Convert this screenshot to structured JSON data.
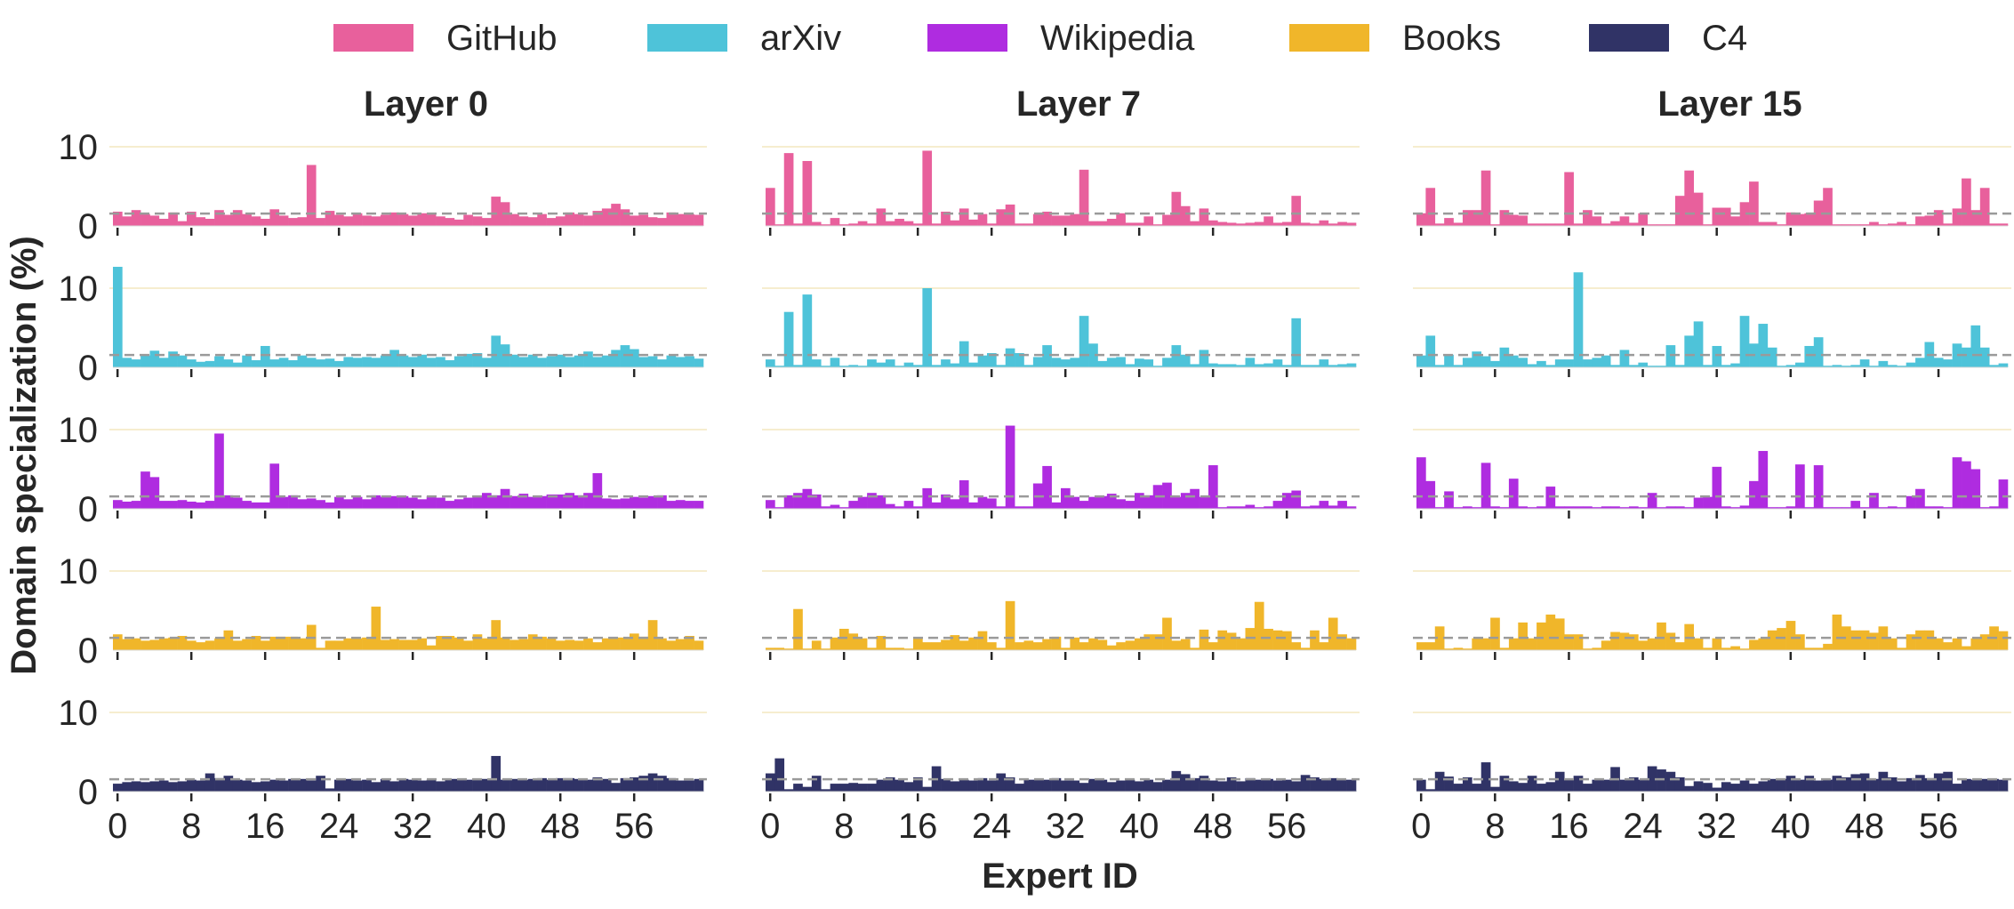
{
  "chart_data": {
    "type": "bar",
    "ylabel": "Domain specialization (%)",
    "xlabel": "Expert ID",
    "panel_titles": [
      "Layer 0",
      "Layer 7",
      "Layer 15"
    ],
    "ylim": [
      0,
      10
    ],
    "yticks": [
      0,
      10
    ],
    "xticks": [
      0,
      8,
      16,
      24,
      32,
      40,
      48,
      56
    ],
    "num_experts": 64,
    "reference_line": 1.5625,
    "legend_position": "top",
    "grid": true,
    "domains": [
      {
        "name": "GitHub",
        "color": "#E8609C",
        "layers": [
          [
            1.8,
            1.2,
            2.0,
            1.5,
            1.3,
            0.9,
            1.7,
            0.6,
            1.8,
            1.1,
            0.9,
            2.0,
            1.4,
            2.0,
            1.5,
            1.2,
            0.9,
            2.1,
            1.3,
            1.0,
            1.1,
            7.7,
            1.0,
            1.9,
            1.4,
            1.2,
            1.6,
            1.3,
            1.2,
            1.4,
            1.7,
            1.5,
            1.3,
            1.6,
            1.5,
            1.2,
            1.0,
            0.8,
            1.4,
            1.2,
            1.0,
            3.7,
            3.0,
            1.5,
            1.2,
            1.1,
            1.5,
            1.0,
            1.2,
            1.7,
            1.5,
            1.3,
            1.9,
            2.2,
            2.8,
            2.1,
            1.3,
            1.4,
            1.1,
            1.0,
            1.7,
            1.5,
            1.5,
            1.4
          ],
          [
            4.8,
            0.2,
            9.2,
            0.3,
            8.2,
            0.5,
            0.2,
            1.0,
            0.2,
            0.3,
            0.6,
            0.3,
            2.2,
            0.6,
            0.9,
            0.6,
            0.3,
            9.5,
            0.3,
            1.8,
            0.7,
            2.2,
            0.8,
            1.5,
            0.3,
            2.1,
            2.7,
            0.3,
            0.3,
            1.5,
            1.8,
            1.3,
            1.3,
            1.5,
            7.1,
            0.6,
            0.6,
            0.9,
            1.6,
            0.4,
            0.4,
            1.2,
            0.2,
            1.4,
            4.3,
            2.5,
            0.6,
            2.2,
            0.7,
            0.5,
            0.4,
            0.3,
            0.4,
            0.5,
            1.2,
            0.4,
            0.5,
            3.8,
            0.4,
            0.3,
            0.7,
            0.3,
            0.5,
            0.4
          ],
          [
            1.6,
            4.8,
            0.3,
            1.0,
            0.4,
            2.0,
            2.0,
            7.0,
            0.2,
            2.0,
            1.4,
            1.3,
            0.3,
            0.3,
            0.3,
            0.3,
            6.8,
            0.3,
            2.0,
            1.2,
            0.3,
            0.6,
            1.2,
            0.4,
            1.6,
            0.2,
            0.2,
            0.2,
            3.8,
            7.0,
            4.2,
            0.2,
            2.3,
            2.3,
            1.2,
            3.0,
            5.6,
            0.5,
            0.5,
            0.2,
            1.7,
            1.5,
            1.6,
            3.2,
            4.8,
            0.2,
            0.2,
            0.2,
            0.2,
            0.5,
            0.2,
            0.3,
            0.5,
            0.2,
            1.2,
            1.3,
            2.0,
            0.3,
            2.2,
            6.0,
            2.0,
            4.8,
            0.3,
            0.3
          ]
        ]
      },
      {
        "name": "arXiv",
        "color": "#4EC3D9",
        "layers": [
          [
            12.7,
            1.2,
            1.0,
            1.5,
            2.1,
            1.2,
            2.0,
            1.5,
            1.0,
            0.7,
            0.8,
            1.4,
            1.0,
            0.6,
            1.5,
            0.9,
            2.7,
            1.0,
            1.2,
            0.9,
            1.5,
            1.2,
            1.0,
            1.1,
            0.8,
            1.3,
            1.2,
            1.3,
            1.2,
            1.5,
            2.2,
            1.5,
            1.3,
            1.6,
            1.2,
            1.3,
            0.9,
            1.4,
            1.7,
            1.8,
            1.2,
            4.0,
            2.9,
            1.6,
            1.3,
            1.6,
            1.2,
            1.4,
            1.6,
            1.3,
            1.5,
            2.0,
            1.3,
            1.5,
            2.2,
            2.8,
            2.3,
            1.3,
            1.4,
            1.0,
            1.5,
            1.3,
            1.4,
            1.1
          ],
          [
            1.0,
            0.2,
            7.0,
            0.3,
            9.2,
            1.0,
            0.2,
            1.2,
            0.2,
            0.3,
            0.2,
            1.0,
            0.6,
            1.0,
            0.2,
            0.6,
            0.3,
            10.0,
            0.3,
            1.0,
            0.5,
            3.3,
            0.6,
            1.5,
            1.8,
            0.3,
            2.4,
            1.8,
            0.3,
            1.3,
            2.8,
            1.2,
            1.0,
            1.2,
            6.5,
            3.0,
            0.8,
            1.2,
            1.3,
            0.4,
            1.1,
            1.0,
            0.2,
            1.2,
            2.8,
            1.6,
            0.4,
            2.2,
            0.5,
            0.4,
            0.4,
            0.3,
            1.2,
            0.4,
            0.5,
            1.0,
            0.3,
            6.2,
            0.3,
            0.3,
            1.0,
            0.3,
            0.4,
            0.5
          ],
          [
            1.5,
            4.0,
            0.3,
            1.6,
            0.3,
            1.2,
            2.0,
            1.4,
            0.8,
            2.5,
            1.5,
            1.2,
            0.4,
            0.8,
            0.3,
            1.0,
            1.0,
            12.0,
            1.0,
            1.2,
            1.5,
            0.3,
            2.2,
            0.3,
            0.6,
            0.2,
            0.2,
            2.8,
            0.3,
            4.0,
            5.8,
            0.3,
            2.7,
            0.3,
            0.5,
            6.5,
            3.0,
            5.5,
            2.5,
            0.2,
            0.3,
            0.6,
            2.7,
            3.8,
            0.2,
            0.3,
            0.2,
            0.3,
            1.0,
            0.2,
            0.8,
            0.3,
            0.2,
            0.6,
            1.2,
            3.2,
            1.2,
            1.0,
            3.0,
            2.5,
            5.3,
            2.5,
            0.3,
            0.5
          ]
        ]
      },
      {
        "name": "Wikipedia",
        "color": "#AF2CE0",
        "layers": [
          [
            1.1,
            0.9,
            1.0,
            4.7,
            4.0,
            1.0,
            1.0,
            1.1,
            0.9,
            0.8,
            1.0,
            9.5,
            1.7,
            1.4,
            1.0,
            0.8,
            0.8,
            5.7,
            1.5,
            1.7,
            1.2,
            1.3,
            1.1,
            0.8,
            1.5,
            1.2,
            1.5,
            1.2,
            1.7,
            1.5,
            1.6,
            1.6,
            1.4,
            1.2,
            1.6,
            1.4,
            1.0,
            1.2,
            1.4,
            1.6,
            2.0,
            1.7,
            2.5,
            1.6,
            1.9,
            1.5,
            1.6,
            1.8,
            1.8,
            2.0,
            1.7,
            2.0,
            4.5,
            1.3,
            1.2,
            1.3,
            1.5,
            1.4,
            1.6,
            1.7,
            1.0,
            1.1,
            1.0,
            1.0
          ],
          [
            1.1,
            0.2,
            1.7,
            2.0,
            2.5,
            1.8,
            0.3,
            0.5,
            0.2,
            1.0,
            1.5,
            2.0,
            1.7,
            0.6,
            0.3,
            1.0,
            0.3,
            2.6,
            0.8,
            1.8,
            1.2,
            3.6,
            0.8,
            1.5,
            1.3,
            0.3,
            10.5,
            0.3,
            0.3,
            3.2,
            5.4,
            0.8,
            2.6,
            1.5,
            1.0,
            1.5,
            1.6,
            1.9,
            1.2,
            1.0,
            2.0,
            1.7,
            3.0,
            3.3,
            1.5,
            2.0,
            2.5,
            1.5,
            5.5,
            0.2,
            0.3,
            0.3,
            0.5,
            0.2,
            0.3,
            1.0,
            2.0,
            2.3,
            0.3,
            0.4,
            1.0,
            0.4,
            1.0,
            0.3
          ],
          [
            6.5,
            3.5,
            0.2,
            2.2,
            0.2,
            0.3,
            0.2,
            5.8,
            0.3,
            0.2,
            3.8,
            0.3,
            0.2,
            0.3,
            2.8,
            0.3,
            0.3,
            0.3,
            0.3,
            0.2,
            0.3,
            0.3,
            0.2,
            0.3,
            0.2,
            2.0,
            0.2,
            0.3,
            0.3,
            0.2,
            1.4,
            1.5,
            5.3,
            0.3,
            0.2,
            0.4,
            3.5,
            7.3,
            0.2,
            0.2,
            0.3,
            5.6,
            0.2,
            5.5,
            0.2,
            0.2,
            0.2,
            1.0,
            0.2,
            2.0,
            0.2,
            0.3,
            0.2,
            1.6,
            2.5,
            0.3,
            0.3,
            0.2,
            6.5,
            6.0,
            5.0,
            0.2,
            0.3,
            3.7
          ]
        ]
      },
      {
        "name": "Books",
        "color": "#F0B62A",
        "layers": [
          [
            2.0,
            1.4,
            1.5,
            1.2,
            1.3,
            1.5,
            1.6,
            1.8,
            1.2,
            1.0,
            1.2,
            1.5,
            2.5,
            1.2,
            1.4,
            1.8,
            1.2,
            1.7,
            1.7,
            1.7,
            1.5,
            3.2,
            0.3,
            1.2,
            1.2,
            1.5,
            1.5,
            1.6,
            5.5,
            1.3,
            1.4,
            1.3,
            1.3,
            1.5,
            0.6,
            1.8,
            1.8,
            1.6,
            1.2,
            2.0,
            1.5,
            3.8,
            1.6,
            1.3,
            1.4,
            2.0,
            1.7,
            1.5,
            1.2,
            1.3,
            1.2,
            1.5,
            1.0,
            1.5,
            1.6,
            1.6,
            2.1,
            1.7,
            3.8,
            1.5,
            1.2,
            1.4,
            1.8,
            1.2
          ],
          [
            0.3,
            0.3,
            0.2,
            5.2,
            0.2,
            1.2,
            0.2,
            1.6,
            2.7,
            2.1,
            1.5,
            0.3,
            1.8,
            0.3,
            0.3,
            0.2,
            1.5,
            1.0,
            1.0,
            1.3,
            1.9,
            1.2,
            1.6,
            2.4,
            1.0,
            0.3,
            6.2,
            1.0,
            1.2,
            1.0,
            1.4,
            1.7,
            0.3,
            1.6,
            1.0,
            1.5,
            1.3,
            0.6,
            1.0,
            1.2,
            1.5,
            2.0,
            2.0,
            4.1,
            1.2,
            1.4,
            0.3,
            2.6,
            1.0,
            2.5,
            2.2,
            1.5,
            2.8,
            6.1,
            2.7,
            2.5,
            2.4,
            1.0,
            0.3,
            2.5,
            1.0,
            4.1,
            2.0,
            1.5
          ],
          [
            1.0,
            1.0,
            3.0,
            0.2,
            0.3,
            0.2,
            1.5,
            1.5,
            4.1,
            0.3,
            1.5,
            3.5,
            1.5,
            3.5,
            4.5,
            4.0,
            2.0,
            2.0,
            0.2,
            0.3,
            1.2,
            2.3,
            2.2,
            2.0,
            1.2,
            1.5,
            3.5,
            2.2,
            1.0,
            3.3,
            1.5,
            0.3,
            1.5,
            0.3,
            0.5,
            0.2,
            1.3,
            1.5,
            2.5,
            2.8,
            3.7,
            2.0,
            0.3,
            0.3,
            0.8,
            4.5,
            3.0,
            2.5,
            2.5,
            2.2,
            3.0,
            1.5,
            0.3,
            2.0,
            2.5,
            2.5,
            1.5,
            1.0,
            1.5,
            0.5,
            1.5,
            2.0,
            3.0,
            2.4
          ]
        ]
      },
      {
        "name": "C4",
        "color": "#303366",
        "layers": [
          [
            1.0,
            1.2,
            1.3,
            1.2,
            1.3,
            1.4,
            1.2,
            1.3,
            1.5,
            1.4,
            2.3,
            1.7,
            2.0,
            1.5,
            1.4,
            1.2,
            1.3,
            1.5,
            1.4,
            1.6,
            1.6,
            1.4,
            2.0,
            0.4,
            1.5,
            1.6,
            1.4,
            1.5,
            1.2,
            1.6,
            1.3,
            1.6,
            1.5,
            1.4,
            1.5,
            1.3,
            1.6,
            1.6,
            1.5,
            1.6,
            1.6,
            4.5,
            1.5,
            1.6,
            1.5,
            1.6,
            1.7,
            1.5,
            1.7,
            1.7,
            1.6,
            1.5,
            1.8,
            1.6,
            1.1,
            1.7,
            1.8,
            2.0,
            2.3,
            2.0,
            1.7,
            1.4,
            1.4,
            1.6
          ],
          [
            2.3,
            4.2,
            0.3,
            1.0,
            0.6,
            2.0,
            0.3,
            1.0,
            1.0,
            1.1,
            1.0,
            1.0,
            1.5,
            1.8,
            1.5,
            1.2,
            1.8,
            0.6,
            3.2,
            1.6,
            1.3,
            1.5,
            1.4,
            1.7,
            1.4,
            2.3,
            1.8,
            1.0,
            1.5,
            1.5,
            1.5,
            1.7,
            1.4,
            1.4,
            1.1,
            1.6,
            1.5,
            1.2,
            1.4,
            1.5,
            1.3,
            1.5,
            1.2,
            1.5,
            2.6,
            2.2,
            1.7,
            2.0,
            1.4,
            1.3,
            1.8,
            1.3,
            1.7,
            1.5,
            1.6,
            1.4,
            1.5,
            1.3,
            2.1,
            1.8,
            1.6,
            1.7,
            1.5,
            1.5
          ],
          [
            1.5,
            0.3,
            2.5,
            1.9,
            1.0,
            1.8,
            1.0,
            3.7,
            0.6,
            2.0,
            1.3,
            1.1,
            2.0,
            1.0,
            1.2,
            2.5,
            1.5,
            2.0,
            1.0,
            1.5,
            1.5,
            3.1,
            1.5,
            1.8,
            1.5,
            3.2,
            2.8,
            2.5,
            1.8,
            0.7,
            1.3,
            1.1,
            0.5,
            1.2,
            1.0,
            1.4,
            1.0,
            1.3,
            1.6,
            1.6,
            2.0,
            1.5,
            2.0,
            1.4,
            1.5,
            2.0,
            1.8,
            2.2,
            2.3,
            1.6,
            2.5,
            1.8,
            1.3,
            1.7,
            2.1,
            1.7,
            2.3,
            2.5,
            1.0,
            1.6,
            1.5,
            1.6,
            1.6,
            1.5
          ]
        ]
      }
    ]
  }
}
